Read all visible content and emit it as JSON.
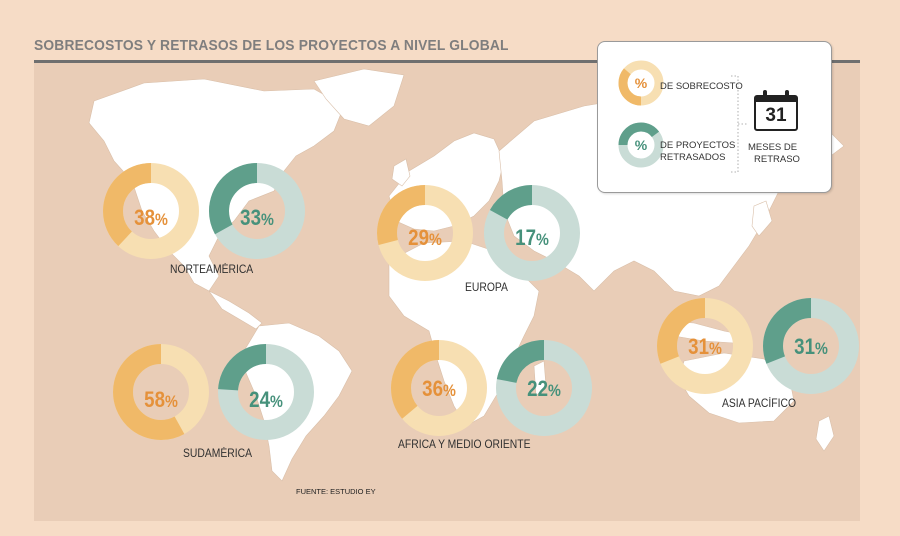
{
  "title": "SOBRECOSTOS Y RETRASOS DE LOS PROYECTOS A NIVEL GLOBAL",
  "source": "FUENTE: ESTUDIO EY",
  "colors": {
    "overrun": "#f0b968",
    "overrun_track": "#f7dfb2",
    "delay": "#5f9f8b",
    "delay_track": "#c9dcd6",
    "overrun_text": "#e5913a",
    "delay_text": "#46917b",
    "land": "#ffffff",
    "background": "#f6dcc6"
  },
  "legend": {
    "overrun_label": "DE SOBRECOSTO",
    "delay_label_1": "DE PROYECTOS",
    "delay_label_2": "RETRASADOS",
    "pct_symbol": "%",
    "calendar_number": "31",
    "calendar_label_1": "MESES DE",
    "calendar_label_2": "RETRASO",
    "calendar_icon": "calendar-icon"
  },
  "regions": [
    {
      "name": "NORTEAMÉRICA",
      "overrun_pct": 38,
      "overrun_text": "38",
      "delayed_pct": 33,
      "delayed_text": "33"
    },
    {
      "name": "EUROPA",
      "overrun_pct": 29,
      "overrun_text": "29",
      "delayed_pct": 17,
      "delayed_text": "17"
    },
    {
      "name": "SUDAMÉRICA",
      "overrun_pct": 58,
      "overrun_text": "58",
      "delayed_pct": 24,
      "delayed_text": "24"
    },
    {
      "name": "AFRICA Y MEDIO ORIENTE",
      "overrun_pct": 36,
      "overrun_text": "36",
      "delayed_pct": 22,
      "delayed_text": "22"
    },
    {
      "name": "ASIA PACÍFICO",
      "overrun_pct": 31,
      "overrun_text": "31",
      "delayed_pct": 31,
      "delayed_text": "31"
    }
  ],
  "pct_symbol": "%"
}
